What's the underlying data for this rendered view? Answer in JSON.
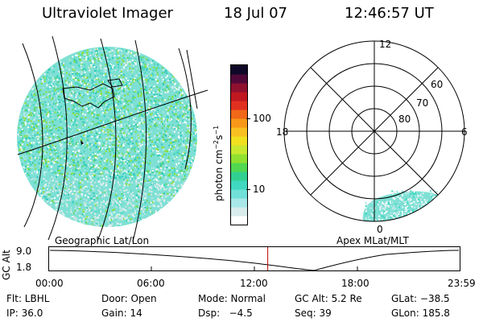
{
  "header": {
    "title": "Ultraviolet Imager",
    "date": "18 Jul 07",
    "time": "12:46:57 UT"
  },
  "colorbar": {
    "label": "photon cm^-2 s^-1",
    "ticks": [
      "100",
      "10"
    ],
    "colors": [
      "#ffffff",
      "#d8ecec",
      "#a8e8e8",
      "#70e0d8",
      "#40d8c0",
      "#30d090",
      "#50d850",
      "#90e030",
      "#c8e830",
      "#f0e020",
      "#f8c020",
      "#f89818",
      "#f06818",
      "#e03020",
      "#c01820",
      "#901030",
      "#500838",
      "#100828"
    ]
  },
  "polar": {
    "labels": {
      "top": "12",
      "left": "18",
      "right": "6",
      "bottom": "0"
    },
    "ring_labels": [
      "60",
      "70",
      "80"
    ]
  },
  "timeline": {
    "left_label": "Geographic Lat/Lon",
    "right_label": "Apex MLat/MLT",
    "ylabel": "GC Alt",
    "yticks": [
      "9.0",
      "1.8"
    ],
    "xticks": [
      "00:00",
      "06:00",
      "12:00",
      "18:00",
      "23:59"
    ],
    "marker_hour": 12.78
  },
  "info": {
    "flt": "Flt: LBHL",
    "door": "Door: Open",
    "mode": "Mode: Normal",
    "gcalt": "GC Alt: 5.2 Re",
    "glat": "GLat: −38.5",
    "ip": "IP: 36.0",
    "gain": "Gain: 14",
    "dsp": "Dsp:   −4.5",
    "seq": "Seq: 39",
    "glon": "GLon: 185.8"
  }
}
